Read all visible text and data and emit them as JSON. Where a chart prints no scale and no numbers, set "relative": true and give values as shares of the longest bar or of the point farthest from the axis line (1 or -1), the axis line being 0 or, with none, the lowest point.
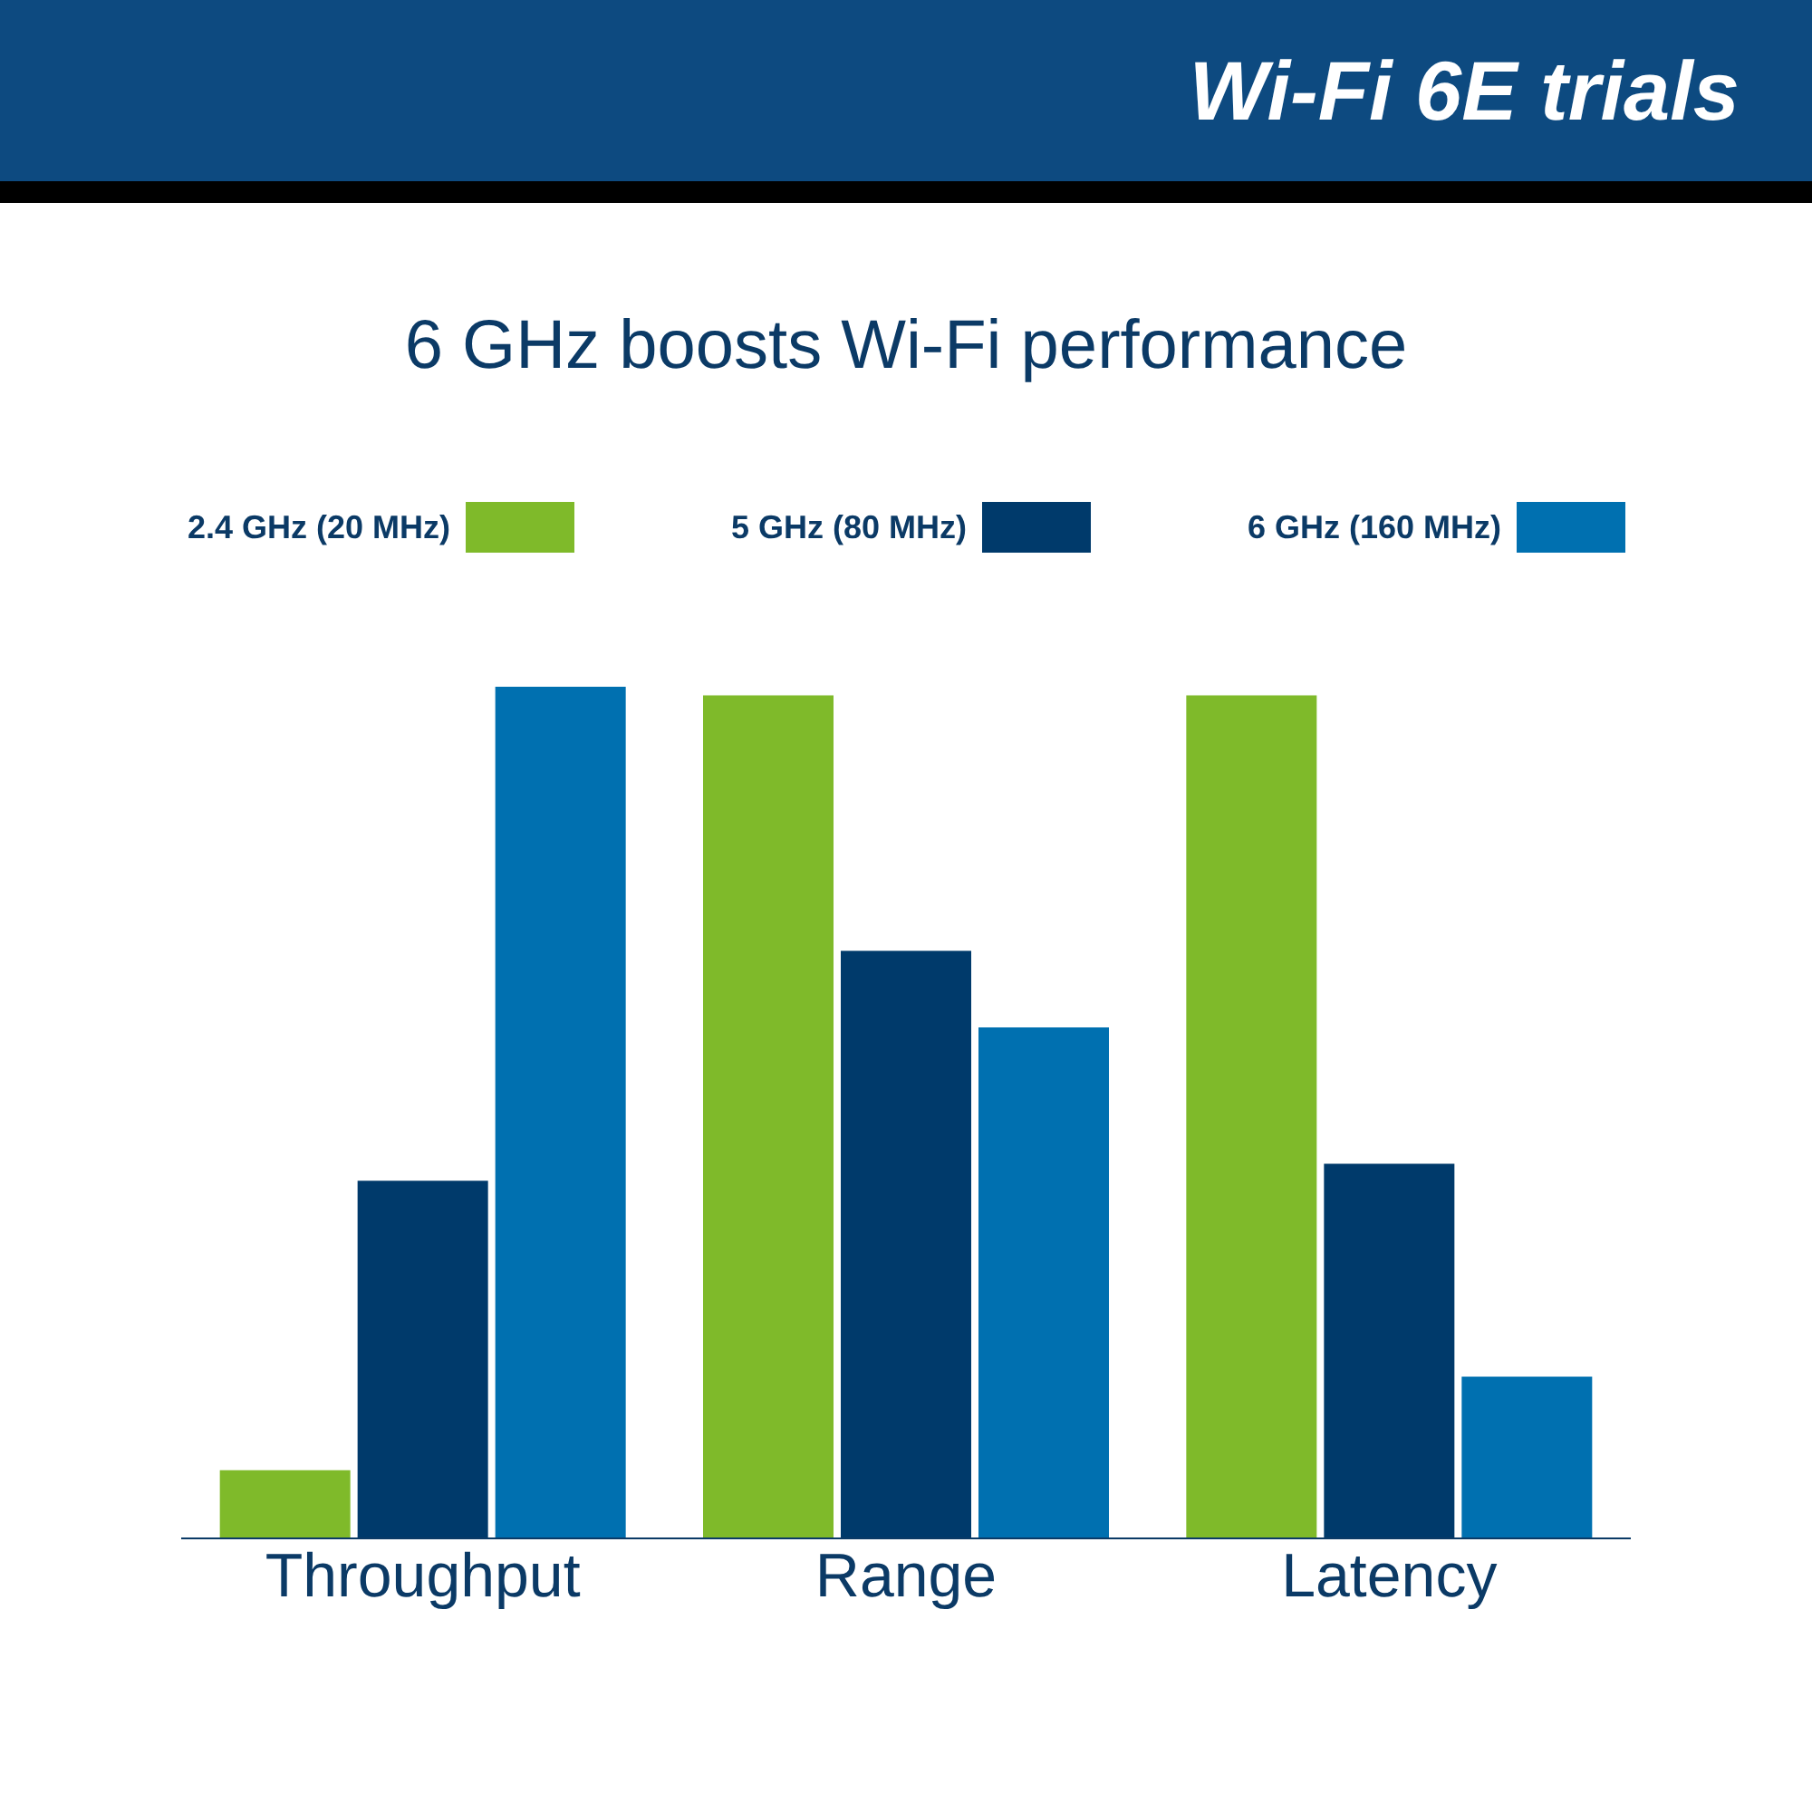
{
  "chart_data": {
    "type": "bar",
    "title": "Wi-Fi 6E trials",
    "subtitle": "6 GHz boosts Wi-Fi performance",
    "relative": true,
    "legend": "top",
    "grid": false,
    "categories": [
      "Throughput",
      "Range",
      "Latency"
    ],
    "series": [
      {
        "name": "2.4 GHz (20 MHz)",
        "color": "#7fba2a",
        "values": [
          0.08,
          0.99,
          0.99
        ]
      },
      {
        "name": "5 GHz (80 MHz)",
        "color": "#003a6b",
        "values": [
          0.42,
          0.69,
          0.44
        ]
      },
      {
        "name": "6 GHz (160 MHz)",
        "color": "#0070b0",
        "values": [
          1,
          0.6,
          0.19
        ]
      }
    ]
  }
}
